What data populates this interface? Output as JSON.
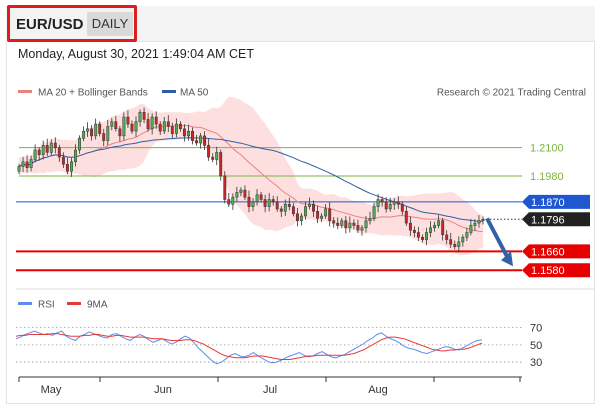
{
  "header": {
    "symbol": "EUR/USD",
    "timeframe": "DAILY"
  },
  "timestamp": "Monday, August 30, 2021 1:49:04 AM CET",
  "legend": {
    "bollinger": "MA 20 + Bollinger Bands",
    "ma50": "MA 50",
    "credit": "Research © 2021 Trading Central"
  },
  "rsi_legend": {
    "rsi": "RSI",
    "ma9": "9MA"
  },
  "colors": {
    "green_level": "#7cb342",
    "blue_level": "#1f57d1",
    "red_level": "#e60000",
    "current": "#222222",
    "candle_up": "#4caf50",
    "candle_down": "#c62828",
    "band": "#fcd4d4",
    "ma20": "#f08080",
    "ma50": "#2f5ea6",
    "rsi": "#5b8def",
    "ma9": "#e53935",
    "arrow": "#2f62a8"
  },
  "chart_data": [
    {
      "type": "candlestick",
      "title": "EUR/USD",
      "x_labels": [
        "May",
        "Jun",
        "Jul",
        "Aug"
      ],
      "ylim": [
        1.153,
        1.2315
      ],
      "levels": [
        {
          "value": 1.21,
          "label": "1.2100",
          "color": "green"
        },
        {
          "value": 1.198,
          "label": "1.1980",
          "color": "green"
        },
        {
          "value": 1.187,
          "label": "1.1870",
          "color": "blue"
        },
        {
          "value": 1.166,
          "label": "1.1660",
          "color": "red"
        },
        {
          "value": 1.158,
          "label": "1.1580",
          "color": "red"
        }
      ],
      "current_price": {
        "value": 1.1796,
        "label": "1.1796"
      },
      "forecast_arrow": {
        "from": 1.18,
        "to": 1.158
      },
      "close": [
        1.202,
        1.204,
        1.2015,
        1.205,
        1.209,
        1.207,
        1.211,
        1.208,
        1.212,
        1.21,
        1.206,
        1.203,
        1.2,
        1.204,
        1.209,
        1.214,
        1.217,
        1.218,
        1.215,
        1.22,
        1.216,
        1.213,
        1.219,
        1.221,
        1.218,
        1.215,
        1.223,
        1.22,
        1.217,
        1.221,
        1.225,
        1.222,
        1.218,
        1.223,
        1.22,
        1.217,
        1.221,
        1.219,
        1.216,
        1.22,
        1.218,
        1.215,
        1.217,
        1.213,
        1.212,
        1.215,
        1.211,
        1.206,
        1.205,
        1.208,
        1.198,
        1.188,
        1.186,
        1.189,
        1.191,
        1.192,
        1.189,
        1.185,
        1.187,
        1.19,
        1.188,
        1.185,
        1.188,
        1.187,
        1.184,
        1.183,
        1.186,
        1.185,
        1.182,
        1.179,
        1.181,
        1.185,
        1.186,
        1.183,
        1.18,
        1.181,
        1.184,
        1.179,
        1.178,
        1.177,
        1.179,
        1.176,
        1.178,
        1.177,
        1.175,
        1.176,
        1.179,
        1.18,
        1.185,
        1.188,
        1.187,
        1.184,
        1.186,
        1.187,
        1.186,
        1.183,
        1.178,
        1.175,
        1.174,
        1.172,
        1.171,
        1.174,
        1.176,
        1.177,
        1.179,
        1.173,
        1.171,
        1.169,
        1.168,
        1.17,
        1.172,
        1.174,
        1.177,
        1.178,
        1.179,
        1.1796
      ]
    },
    {
      "type": "line",
      "title": "RSI",
      "x_labels": [
        "May",
        "Jun",
        "Jul",
        "Aug"
      ],
      "ylim": [
        15,
        80
      ],
      "y_ticks": [
        70,
        50,
        30
      ],
      "series": [
        {
          "name": "RSI",
          "values": [
            57,
            59,
            62,
            64,
            66,
            64,
            62,
            63,
            61,
            64,
            66,
            60,
            57,
            55,
            60,
            62,
            65,
            63,
            61,
            59,
            58,
            62,
            63,
            60,
            57,
            55,
            59,
            62,
            60,
            56,
            53,
            55,
            57,
            54,
            51,
            53,
            57,
            60,
            58,
            52,
            46,
            41,
            36,
            31,
            28,
            30,
            34,
            38,
            40,
            37,
            36,
            38,
            41,
            37,
            34,
            31,
            29,
            30,
            32,
            35,
            37,
            39,
            41,
            38,
            36,
            37,
            40,
            42,
            39,
            36,
            35,
            37,
            39,
            42,
            45,
            48,
            51,
            55,
            58,
            62,
            64,
            60,
            57,
            55,
            52,
            48,
            46,
            45,
            43,
            41,
            40,
            42,
            44,
            46,
            48,
            47,
            45,
            44,
            47,
            50,
            53,
            55,
            56
          ]
        },
        {
          "name": "9MA",
          "values": [
            60,
            61,
            61,
            62,
            62,
            62,
            62,
            62,
            63,
            63,
            62,
            61,
            60,
            60,
            60,
            61,
            61,
            62,
            62,
            61,
            60,
            60,
            61,
            61,
            60,
            59,
            59,
            59,
            59,
            58,
            57,
            57,
            57,
            56,
            55,
            55,
            55,
            56,
            56,
            55,
            53,
            51,
            48,
            45,
            42,
            39,
            37,
            36,
            35,
            35,
            35,
            36,
            37,
            37,
            37,
            36,
            35,
            34,
            33,
            33,
            33,
            34,
            35,
            36,
            37,
            37,
            38,
            38,
            38,
            38,
            38,
            38,
            38,
            39,
            40,
            42,
            44,
            47,
            50,
            53,
            56,
            58,
            59,
            59,
            58,
            57,
            55,
            53,
            51,
            49,
            47,
            45,
            44,
            43,
            43,
            44,
            44,
            45,
            45,
            46,
            48,
            50,
            52
          ]
        }
      ]
    }
  ]
}
